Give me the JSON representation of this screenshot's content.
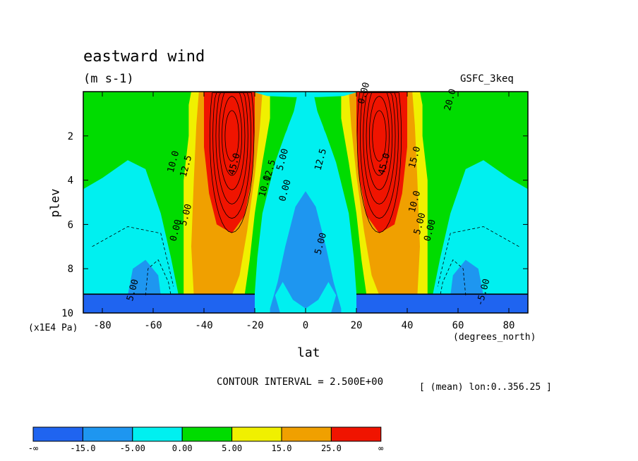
{
  "header": {
    "title": "eastward wind",
    "units": "(m s-1)",
    "dataset": "GSFC_3keq"
  },
  "footer": {
    "contour_interval": "CONTOUR INTERVAL = 2.500E+00",
    "mean_note": "[ (mean) lon:0..356.25 ]"
  },
  "chart_data": {
    "type": "contour",
    "variable": "eastward wind",
    "units": "(m s-1)",
    "xlabel": "lat",
    "x_units": "(degrees_north)",
    "ylabel": "plev",
    "y_units": "(x1E4 Pa)",
    "xlim": [
      -87.5,
      87.5
    ],
    "ylim": [
      10,
      0
    ],
    "x_ticks": [
      -80,
      -60,
      -40,
      -20,
      0,
      20,
      40,
      60,
      80
    ],
    "x_tick_labels": [
      "-80",
      "-60",
      "-40",
      "-20",
      "0",
      "20",
      "40",
      "60",
      "80"
    ],
    "y_ticks": [
      2,
      4,
      6,
      8,
      10
    ],
    "y_tick_labels": [
      "2",
      "4",
      "6",
      "8",
      "10"
    ],
    "contour_interval": 2.5,
    "jet_maxima": [
      {
        "lat": -29,
        "plev": 2,
        "value": 45
      },
      {
        "lat": 29,
        "plev": 2,
        "value": 45
      }
    ],
    "contour_labels": [
      {
        "text": "0.00",
        "lat": 24,
        "plev": 0.1
      },
      {
        "text": "20.0",
        "lat": 58,
        "plev": 0.4
      },
      {
        "text": "10.0",
        "lat": -51,
        "plev": 3.2
      },
      {
        "text": "12.5",
        "lat": -46,
        "plev": 3.4
      },
      {
        "text": "45.0",
        "lat": -27,
        "plev": 3.3
      },
      {
        "text": "45.0",
        "lat": 32,
        "plev": 3.3
      },
      {
        "text": "10.0",
        "lat": -15,
        "plev": 4.3
      },
      {
        "text": "12.5",
        "lat": -13,
        "plev": 3.6
      },
      {
        "text": "5.00",
        "lat": -8,
        "plev": 3.1
      },
      {
        "text": "0.00",
        "lat": -7,
        "plev": 4.5
      },
      {
        "text": "12.5",
        "lat": 7,
        "plev": 3.1
      },
      {
        "text": "15.0",
        "lat": 44,
        "plev": 3.0
      },
      {
        "text": "10.0",
        "lat": 44,
        "plev": 5.0
      },
      {
        "text": "5.00",
        "lat": 46,
        "plev": 6.0
      },
      {
        "text": "0.00",
        "lat": 50,
        "plev": 6.3
      },
      {
        "text": "5.00",
        "lat": -46,
        "plev": 5.6
      },
      {
        "text": "0.00",
        "lat": -50,
        "plev": 6.3
      },
      {
        "text": "5.00",
        "lat": 7,
        "plev": 6.9
      },
      {
        "text": "5.00",
        "lat": -67,
        "plev": 9.0
      },
      {
        "text": "-5.00",
        "lat": 71,
        "plev": 9.1
      }
    ],
    "colorbar": {
      "boundaries": [
        "-∞",
        "-15.0",
        "-5.00",
        "0.00",
        "5.00",
        "15.0",
        "25.0",
        "∞"
      ],
      "colors": [
        "#1f64f0",
        "#1e96f0",
        "#00f0f0",
        "#00dc00",
        "#f0f000",
        "#f0a000",
        "#f01400"
      ]
    },
    "colors": {
      "deep_blue": "#1f64f0",
      "light_blue": "#1e96f0",
      "cyan": "#00f0f0",
      "green": "#00dc00",
      "yellow": "#f0f000",
      "orange": "#f0a000",
      "red": "#f01400"
    }
  }
}
